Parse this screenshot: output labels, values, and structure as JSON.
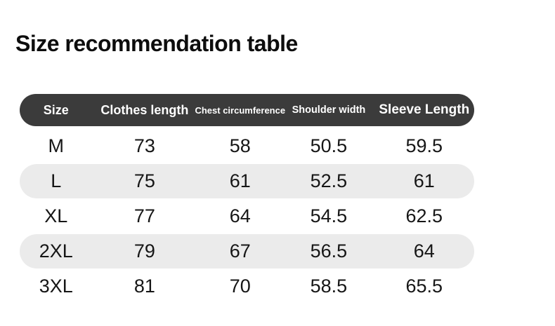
{
  "page": {
    "title": "Size recommendation table"
  },
  "table": {
    "headers": [
      "Size",
      "Clothes length",
      "Chest circumference",
      "Shoulder width",
      "Sleeve Length"
    ],
    "rows": [
      [
        "M",
        "73",
        "58",
        "50.5",
        "59.5"
      ],
      [
        "L",
        "75",
        "61",
        "52.5",
        "61"
      ],
      [
        "XL",
        "77",
        "64",
        "54.5",
        "62.5"
      ],
      [
        "2XL",
        "79",
        "67",
        "56.5",
        "64"
      ],
      [
        "3XL",
        "81",
        "70",
        "58.5",
        "65.5"
      ]
    ]
  },
  "colors": {
    "background": "#ffffff",
    "header_bg": "#3b3b3b",
    "header_text": "#ffffff",
    "shaded_row_bg": "#ebebeb",
    "data_text": "#161616",
    "title_text": "#0d0d0d"
  }
}
